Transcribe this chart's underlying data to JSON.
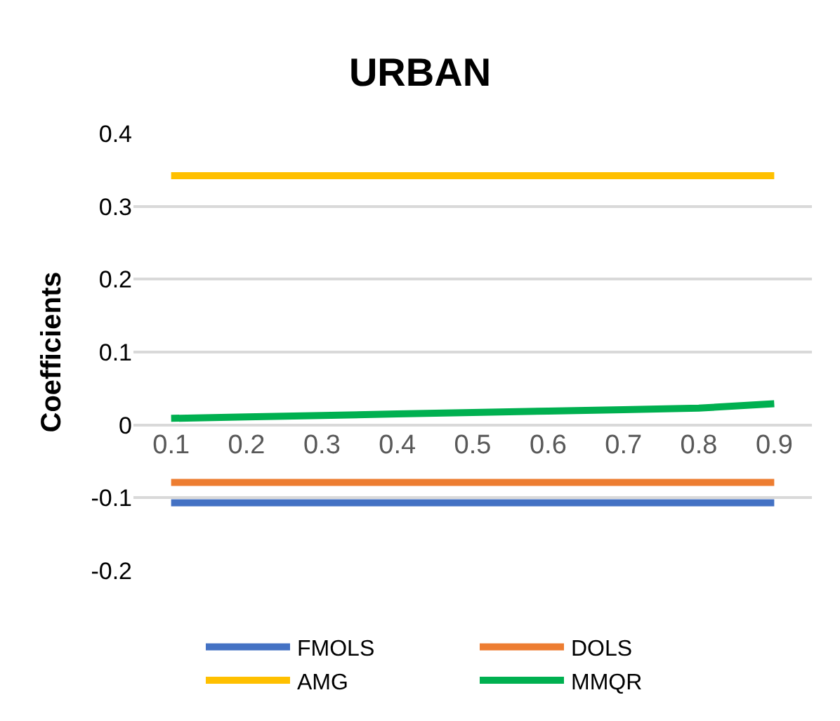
{
  "chart_data": {
    "type": "line",
    "title": "URBAN",
    "ylabel": "Coefficients",
    "categories": [
      "0.1",
      "0.2",
      "0.3",
      "0.4",
      "0.5",
      "0.6",
      "0.7",
      "0.8",
      "0.9"
    ],
    "series": [
      {
        "name": "FMOLS",
        "color": "#4472c4",
        "values": [
          -0.107,
          -0.107,
          -0.107,
          -0.107,
          -0.107,
          -0.107,
          -0.107,
          -0.107,
          -0.107
        ]
      },
      {
        "name": "DOLS",
        "color": "#ed7d31",
        "values": [
          -0.079,
          -0.079,
          -0.079,
          -0.079,
          -0.079,
          -0.079,
          -0.079,
          -0.079,
          -0.079
        ]
      },
      {
        "name": "AMG",
        "color": "#ffc000",
        "values": [
          0.342,
          0.342,
          0.342,
          0.342,
          0.342,
          0.342,
          0.342,
          0.342,
          0.342
        ]
      },
      {
        "name": "MMQR",
        "color": "#00b050",
        "values": [
          0.009,
          0.011,
          0.013,
          0.015,
          0.017,
          0.019,
          0.021,
          0.023,
          0.029
        ]
      }
    ],
    "ylim": [
      -0.2,
      0.4
    ],
    "yticks": [
      -0.2,
      -0.1,
      0,
      0.1,
      0.2,
      0.3,
      0.4
    ],
    "grid": "y",
    "legend": "bottom",
    "marker": "none",
    "line_style": "solid"
  }
}
